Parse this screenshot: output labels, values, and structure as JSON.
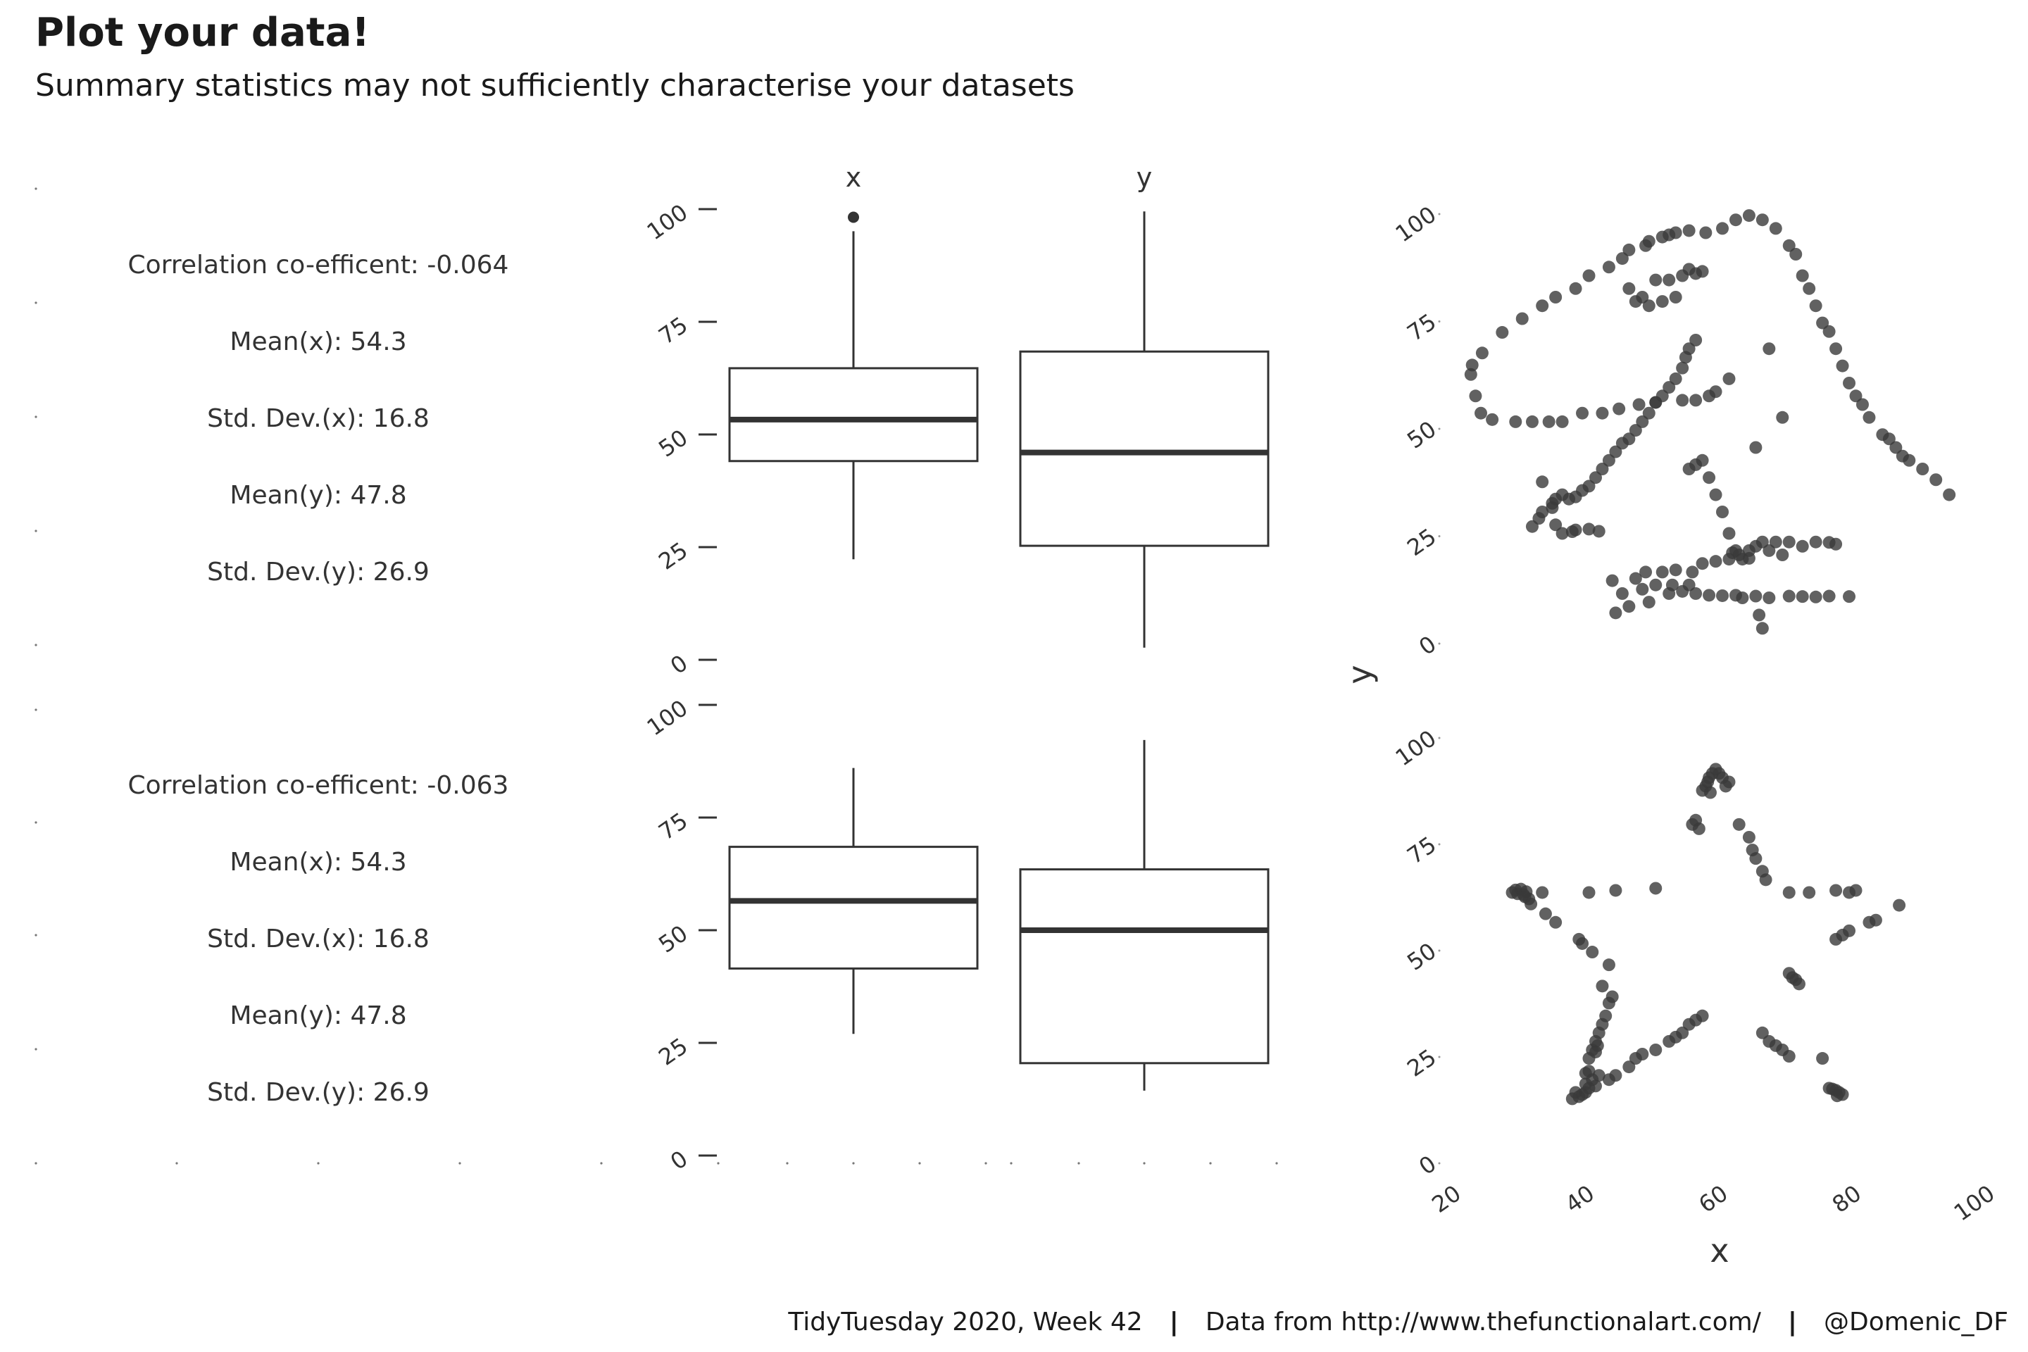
{
  "header": {
    "title": "Plot your data!",
    "subtitle": "Summary statistics may not sufficiently characterise your datasets"
  },
  "footer": {
    "week": "TidyTuesday 2020, Week 42",
    "source": "Data from http://www.thefunctionalart.com/",
    "handle": "@Domenic_DF",
    "separator": "|"
  },
  "colors": {
    "ink": "#333333",
    "point": "#3a3a3a",
    "point_fill_opacity": "0.8"
  },
  "chart_data": [
    {
      "type": "table",
      "panel": "summary-top",
      "rows": [
        "Correlation co-efficent: -0.064",
        "Mean(x): 54.3",
        "Std. Dev.(x): 16.8",
        "Mean(y): 47.8",
        "Std. Dev.(y): 26.9"
      ]
    },
    {
      "type": "box",
      "panel": "box-top",
      "categories": [
        "x",
        "y"
      ],
      "ylim": [
        0,
        100
      ],
      "yticks": [
        "0",
        "25",
        "50",
        "75",
        "100"
      ],
      "boxes": [
        {
          "name": "x",
          "lower_whisker": 22.3,
          "q1": 44.1,
          "median": 53.3,
          "q3": 64.7,
          "upper_whisker": 95.1,
          "outliers": [
            98.2
          ]
        },
        {
          "name": "y",
          "lower_whisker": 2.7,
          "q1": 25.3,
          "median": 46.0,
          "q3": 68.4,
          "upper_whisker": 99.5,
          "outliers": []
        }
      ]
    },
    {
      "type": "scatter",
      "panel": "scatter-dino",
      "xlim": [
        20,
        100
      ],
      "ylim": [
        0,
        100
      ],
      "yticks": [
        "0",
        "25",
        "50",
        "75",
        "100"
      ],
      "points": [
        [
          22.3,
          62
        ],
        [
          22.5,
          64.2
        ],
        [
          23,
          57
        ],
        [
          23.8,
          53
        ],
        [
          24,
          67
        ],
        [
          25.5,
          51.5
        ],
        [
          27,
          71.8
        ],
        [
          29,
          51
        ],
        [
          30,
          75
        ],
        [
          31.5,
          51
        ],
        [
          33,
          78
        ],
        [
          34,
          51
        ],
        [
          35,
          80
        ],
        [
          36,
          51
        ],
        [
          38,
          82
        ],
        [
          39,
          53
        ],
        [
          40,
          85
        ],
        [
          42,
          53
        ],
        [
          43,
          87
        ],
        [
          44.5,
          54
        ],
        [
          45,
          89
        ],
        [
          46,
          91
        ],
        [
          47.5,
          55
        ],
        [
          48.5,
          92
        ],
        [
          49,
          93
        ],
        [
          50,
          55.5
        ],
        [
          51,
          94
        ],
        [
          52,
          94.5
        ],
        [
          53,
          95
        ],
        [
          54,
          56
        ],
        [
          55,
          95.5
        ],
        [
          56,
          56
        ],
        [
          57.5,
          95
        ],
        [
          58,
          57
        ],
        [
          59,
          58
        ],
        [
          60,
          96
        ],
        [
          61,
          61
        ],
        [
          62,
          98
        ],
        [
          64,
          99
        ],
        [
          65,
          45
        ],
        [
          66,
          98
        ],
        [
          67,
          68
        ],
        [
          68,
          96
        ],
        [
          69,
          52
        ],
        [
          70,
          92
        ],
        [
          71,
          90
        ],
        [
          72,
          85
        ],
        [
          73,
          82
        ],
        [
          74,
          78
        ],
        [
          75,
          74
        ],
        [
          76,
          72
        ],
        [
          77,
          68
        ],
        [
          78,
          64
        ],
        [
          79,
          60
        ],
        [
          80,
          57
        ],
        [
          81,
          55
        ],
        [
          82,
          52
        ],
        [
          84,
          48
        ],
        [
          85,
          47
        ],
        [
          86,
          45
        ],
        [
          87,
          43
        ],
        [
          88,
          42
        ],
        [
          90,
          40
        ],
        [
          92,
          37.5
        ],
        [
          94,
          34
        ],
        [
          31.5,
          26.6
        ],
        [
          32.5,
          28.5
        ],
        [
          33,
          30
        ],
        [
          34.5,
          32
        ],
        [
          35,
          33
        ],
        [
          36,
          34
        ],
        [
          37,
          33
        ],
        [
          38,
          33.5
        ],
        [
          39,
          35
        ],
        [
          40,
          36
        ],
        [
          41,
          38
        ],
        [
          42,
          40
        ],
        [
          43,
          42
        ],
        [
          44,
          44
        ],
        [
          45,
          46
        ],
        [
          46,
          47
        ],
        [
          47,
          49
        ],
        [
          48,
          51
        ],
        [
          49,
          53
        ],
        [
          50,
          55.5
        ],
        [
          51,
          57
        ],
        [
          52,
          59
        ],
        [
          53,
          61
        ],
        [
          54,
          63.5
        ],
        [
          54.5,
          66
        ],
        [
          55,
          68
        ],
        [
          56,
          70
        ],
        [
          55,
          40
        ],
        [
          56,
          41
        ],
        [
          57,
          42
        ],
        [
          58,
          38
        ],
        [
          59,
          34
        ],
        [
          60,
          30
        ],
        [
          61,
          25
        ],
        [
          62,
          21
        ],
        [
          61.5,
          20.5
        ],
        [
          62.5,
          20
        ],
        [
          63,
          19
        ],
        [
          64,
          21
        ],
        [
          65,
          22
        ],
        [
          66,
          23
        ],
        [
          67,
          21
        ],
        [
          68,
          23
        ],
        [
          69,
          20
        ],
        [
          70,
          23
        ],
        [
          72,
          22
        ],
        [
          74,
          23
        ],
        [
          76,
          22.9
        ],
        [
          43.5,
          14
        ],
        [
          44,
          6.5
        ],
        [
          45,
          11
        ],
        [
          46,
          8
        ],
        [
          47,
          14.5
        ],
        [
          48,
          12
        ],
        [
          48.5,
          16
        ],
        [
          49,
          9
        ],
        [
          50,
          13
        ],
        [
          51,
          16
        ],
        [
          52,
          11
        ],
        [
          52.5,
          13
        ],
        [
          53,
          16.5
        ],
        [
          54,
          11.5
        ],
        [
          55,
          13
        ],
        [
          55.5,
          16
        ],
        [
          56,
          11
        ],
        [
          57,
          18
        ],
        [
          58,
          10.6
        ],
        [
          59,
          18.5
        ],
        [
          60,
          10.5
        ],
        [
          61,
          19
        ],
        [
          62,
          10.6
        ],
        [
          63,
          10
        ],
        [
          64,
          19.2
        ],
        [
          65,
          10.4
        ],
        [
          65.5,
          6
        ],
        [
          66,
          2.9
        ],
        [
          67,
          10
        ],
        [
          70,
          10.4
        ],
        [
          72,
          10.3
        ],
        [
          74,
          10.2
        ],
        [
          76,
          10.4
        ],
        [
          77,
          22.5
        ],
        [
          79,
          10.3
        ],
        [
          48,
          80
        ],
        [
          49,
          78
        ],
        [
          50,
          84
        ],
        [
          51,
          79
        ],
        [
          52,
          84
        ],
        [
          53,
          80
        ],
        [
          54,
          85
        ],
        [
          55,
          86.5
        ],
        [
          56,
          85.5
        ],
        [
          57,
          86
        ],
        [
          46,
          82
        ],
        [
          47,
          79
        ],
        [
          36,
          25
        ],
        [
          37.5,
          25.4
        ],
        [
          38,
          25.8
        ],
        [
          40,
          26
        ],
        [
          41.5,
          25.5
        ],
        [
          33,
          37
        ],
        [
          34.5,
          31
        ],
        [
          35,
          27
        ]
      ]
    },
    {
      "type": "table",
      "panel": "summary-bottom",
      "rows": [
        "Correlation co-efficent: -0.063",
        "Mean(x): 54.3",
        "Std. Dev.(x): 16.8",
        "Mean(y): 47.8",
        "Std. Dev.(y): 26.9"
      ]
    },
    {
      "type": "box",
      "panel": "box-bottom",
      "categories": [
        "x",
        "y"
      ],
      "ylim": [
        0,
        100
      ],
      "yticks": [
        "0",
        "25",
        "50",
        "75",
        "100"
      ],
      "boxes": [
        {
          "name": "x",
          "lower_whisker": 27.0,
          "q1": 41.5,
          "median": 56.5,
          "q3": 68.5,
          "upper_whisker": 86.0,
          "outliers": []
        },
        {
          "name": "y",
          "lower_whisker": 14.4,
          "q1": 20.5,
          "median": 50.0,
          "q3": 63.5,
          "upper_whisker": 92.2,
          "outliers": []
        }
      ]
    },
    {
      "type": "scatter",
      "panel": "scatter-star",
      "xlabel": "x",
      "ylabel": "y",
      "xlim": [
        20,
        100
      ],
      "ylim": [
        0,
        100
      ],
      "xticks": [
        "20",
        "40",
        "60",
        "80",
        "100"
      ],
      "yticks": [
        "0",
        "25",
        "50",
        "75",
        "100"
      ],
      "points": [
        [
          28.5,
          63
        ],
        [
          29,
          63.6
        ],
        [
          29.3,
          62.7
        ],
        [
          29.8,
          63.8
        ],
        [
          30.2,
          62.5
        ],
        [
          30.6,
          63.2
        ],
        [
          31,
          61.5
        ],
        [
          31.3,
          60.3
        ],
        [
          30.4,
          62
        ],
        [
          33,
          63
        ],
        [
          33.5,
          58
        ],
        [
          35,
          56
        ],
        [
          40,
          63
        ],
        [
          44,
          63.5
        ],
        [
          50,
          64
        ],
        [
          38.5,
          52
        ],
        [
          39,
          51
        ],
        [
          40.5,
          49
        ],
        [
          43,
          46
        ],
        [
          42,
          41
        ],
        [
          43,
          37
        ],
        [
          43.5,
          38.5
        ],
        [
          42.5,
          34
        ],
        [
          42,
          32
        ],
        [
          41.5,
          30
        ],
        [
          41,
          28
        ],
        [
          40.5,
          26
        ],
        [
          40,
          24
        ],
        [
          41,
          25.5
        ],
        [
          41.3,
          27
        ],
        [
          41.5,
          20
        ],
        [
          40.5,
          19
        ],
        [
          39.5,
          18
        ],
        [
          38,
          16
        ],
        [
          39,
          15.5
        ],
        [
          38.5,
          15
        ],
        [
          37.5,
          14.5
        ],
        [
          39.5,
          16
        ],
        [
          40,
          17
        ],
        [
          41,
          17.5
        ],
        [
          40,
          21
        ],
        [
          39.5,
          20.5
        ],
        [
          43,
          19
        ],
        [
          44,
          20
        ],
        [
          46,
          22
        ],
        [
          47,
          24
        ],
        [
          48,
          25
        ],
        [
          50,
          26
        ],
        [
          52,
          28
        ],
        [
          53,
          29
        ],
        [
          54,
          30
        ],
        [
          55,
          32
        ],
        [
          56,
          33
        ],
        [
          57,
          34
        ],
        [
          56.5,
          78
        ],
        [
          56,
          80
        ],
        [
          55.5,
          79
        ],
        [
          57,
          87
        ],
        [
          57.5,
          88
        ],
        [
          58,
          90
        ],
        [
          58.5,
          91
        ],
        [
          59,
          92
        ],
        [
          59.5,
          91
        ],
        [
          60,
          90
        ],
        [
          61,
          89
        ],
        [
          58.2,
          86.5
        ],
        [
          57.8,
          89
        ],
        [
          60.5,
          88
        ],
        [
          62.5,
          79
        ],
        [
          64,
          76
        ],
        [
          64.5,
          73
        ],
        [
          65,
          71
        ],
        [
          66,
          68
        ],
        [
          66.5,
          66
        ],
        [
          70,
          63
        ],
        [
          73,
          63
        ],
        [
          77,
          63.5
        ],
        [
          79,
          63
        ],
        [
          80,
          63.5
        ],
        [
          78,
          53
        ],
        [
          79,
          54
        ],
        [
          77,
          52
        ],
        [
          82,
          56
        ],
        [
          83,
          56.5
        ],
        [
          86.5,
          60
        ],
        [
          70,
          44
        ],
        [
          70.5,
          43
        ],
        [
          71,
          42.5
        ],
        [
          71.5,
          41.5
        ],
        [
          66,
          30
        ],
        [
          67,
          28
        ],
        [
          68,
          27
        ],
        [
          69,
          26
        ],
        [
          70,
          24.5
        ],
        [
          75,
          24
        ],
        [
          76,
          17
        ],
        [
          77,
          16.5
        ],
        [
          77.5,
          16
        ],
        [
          78,
          15.5
        ],
        [
          76.5,
          16.8
        ],
        [
          77.2,
          15.2
        ]
      ]
    }
  ]
}
